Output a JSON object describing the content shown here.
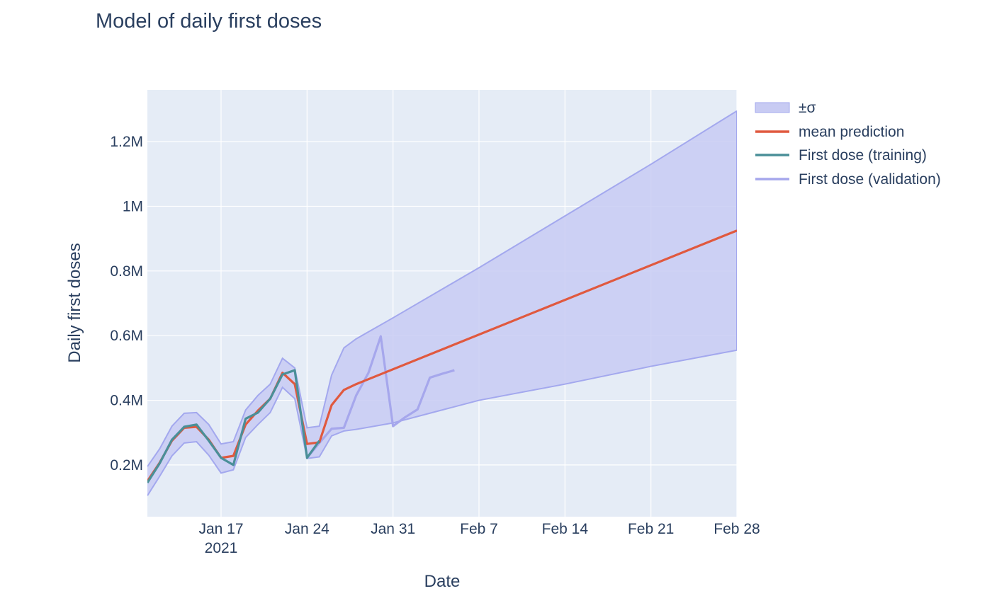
{
  "chart_data": {
    "type": "line",
    "title": "Model of daily first doses",
    "xlabel": "Date",
    "ylabel": "Daily first doses",
    "x_range": [
      "2021-01-11",
      "2021-02-28"
    ],
    "y_range": [
      40000,
      1360000
    ],
    "grid": true,
    "legend_position": "top-right",
    "colors": {
      "background": "#e5ecf6",
      "grid": "#ffffff",
      "band_fill": "#c8cbf3",
      "band_line": "#a3a8ee",
      "mean": "#e0593f",
      "training": "#4a8f98",
      "validation": "#a6a7ec"
    },
    "x_ticks": [
      {
        "date": "2021-01-17",
        "label": "Jan 17",
        "sublabel": "2021"
      },
      {
        "date": "2021-01-24",
        "label": "Jan 24",
        "sublabel": ""
      },
      {
        "date": "2021-01-31",
        "label": "Jan 31",
        "sublabel": ""
      },
      {
        "date": "2021-02-07",
        "label": "Feb 7",
        "sublabel": ""
      },
      {
        "date": "2021-02-14",
        "label": "Feb 14",
        "sublabel": ""
      },
      {
        "date": "2021-02-21",
        "label": "Feb 21",
        "sublabel": ""
      },
      {
        "date": "2021-02-28",
        "label": "Feb 28",
        "sublabel": ""
      }
    ],
    "y_ticks": [
      {
        "value": 200000,
        "label": "0.2M"
      },
      {
        "value": 400000,
        "label": "0.4M"
      },
      {
        "value": 600000,
        "label": "0.6M"
      },
      {
        "value": 800000,
        "label": "0.8M"
      },
      {
        "value": 1000000,
        "label": "1M"
      },
      {
        "value": 1200000,
        "label": "1.2M"
      }
    ],
    "series": [
      {
        "name": "±σ",
        "kind": "band",
        "x": [
          "2021-01-11",
          "2021-01-12",
          "2021-01-13",
          "2021-01-14",
          "2021-01-15",
          "2021-01-16",
          "2021-01-17",
          "2021-01-18",
          "2021-01-19",
          "2021-01-20",
          "2021-01-21",
          "2021-01-22",
          "2021-01-23",
          "2021-01-24",
          "2021-01-25",
          "2021-01-26",
          "2021-01-27",
          "2021-01-28",
          "2021-01-31",
          "2021-02-07",
          "2021-02-14",
          "2021-02-21",
          "2021-02-28"
        ],
        "upper": [
          195000,
          250000,
          320000,
          360000,
          362000,
          325000,
          265000,
          272000,
          370000,
          415000,
          450000,
          530000,
          500000,
          315000,
          320000,
          478000,
          562000,
          590000,
          655000,
          810000,
          970000,
          1130000,
          1295000
        ],
        "lower": [
          105000,
          165000,
          228000,
          268000,
          272000,
          230000,
          175000,
          185000,
          285000,
          325000,
          362000,
          440000,
          405000,
          220000,
          225000,
          290000,
          305000,
          310000,
          330000,
          400000,
          450000,
          505000,
          555000
        ]
      },
      {
        "name": "mean prediction",
        "kind": "line",
        "x": [
          "2021-01-11",
          "2021-01-12",
          "2021-01-13",
          "2021-01-14",
          "2021-01-15",
          "2021-01-16",
          "2021-01-17",
          "2021-01-18",
          "2021-01-19",
          "2021-01-20",
          "2021-01-21",
          "2021-01-22",
          "2021-01-23",
          "2021-01-24",
          "2021-01-25",
          "2021-01-26",
          "2021-01-27",
          "2021-01-28",
          "2021-02-28"
        ],
        "y": [
          150000,
          207000,
          275000,
          315000,
          318000,
          278000,
          222000,
          228000,
          325000,
          368000,
          405000,
          485000,
          450000,
          265000,
          270000,
          385000,
          432000,
          450000,
          925000
        ]
      },
      {
        "name": "First dose (training)",
        "kind": "line",
        "x": [
          "2021-01-11",
          "2021-01-12",
          "2021-01-13",
          "2021-01-14",
          "2021-01-15",
          "2021-01-16",
          "2021-01-17",
          "2021-01-18",
          "2021-01-19",
          "2021-01-20",
          "2021-01-21",
          "2021-01-22",
          "2021-01-23",
          "2021-01-24",
          "2021-01-25"
        ],
        "y": [
          145000,
          205000,
          278000,
          318000,
          325000,
          275000,
          222000,
          200000,
          343000,
          362000,
          405000,
          480000,
          493000,
          222000,
          275000
        ]
      },
      {
        "name": "First dose (validation)",
        "kind": "line",
        "x": [
          "2021-01-24",
          "2021-01-25",
          "2021-01-26",
          "2021-01-27",
          "2021-01-28",
          "2021-01-29",
          "2021-01-30",
          "2021-01-31",
          "2021-02-01",
          "2021-02-02",
          "2021-02-03",
          "2021-02-04",
          "2021-02-05"
        ],
        "y": [
          222000,
          268000,
          312000,
          315000,
          415000,
          485000,
          598000,
          320000,
          348000,
          372000,
          470000,
          482000,
          493000
        ]
      }
    ]
  }
}
